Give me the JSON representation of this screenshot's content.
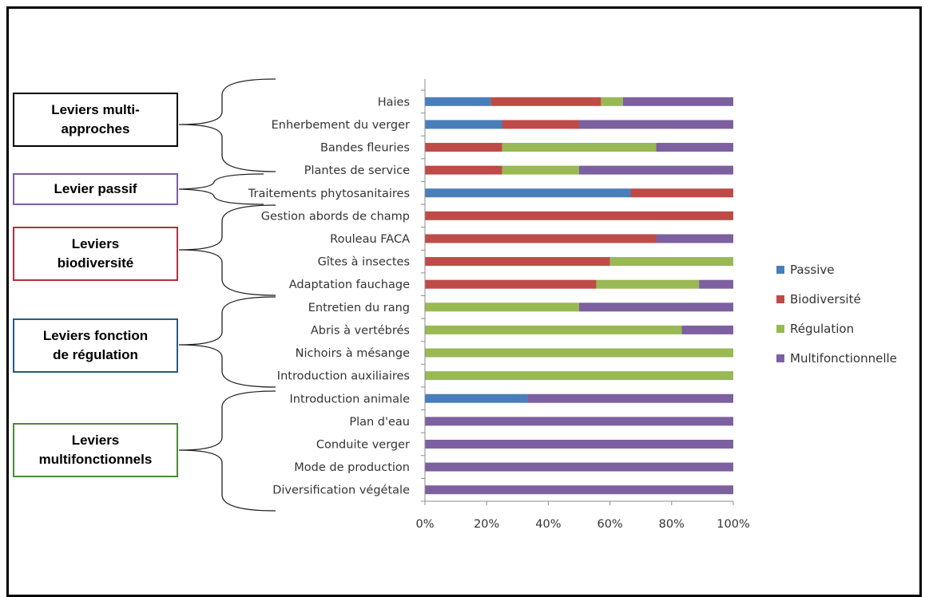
{
  "groups": [
    {
      "label": "Leviers multi-\napproches",
      "color": "#000000"
    },
    {
      "label": "Levier passif",
      "color": "#7b5fa0"
    },
    {
      "label": "Leviers\nbiodiversité",
      "color": "#b3303c"
    },
    {
      "label": "Leviers fonction\nde régulation",
      "color": "#2a5a7d"
    },
    {
      "label": "Leviers\nmultifonctionnels",
      "color": "#4d8a3a"
    }
  ],
  "chart_data": {
    "type": "bar",
    "orientation": "horizontal",
    "stacked": true,
    "percent": true,
    "categories": [
      "Haies",
      "Enherbement du verger",
      "Bandes fleuries",
      "Plantes de service",
      "Traitements phytosanitaires",
      "Gestion abords de champ",
      "Rouleau FACA",
      "Gîtes à insectes",
      "Adaptation fauchage",
      "Entretien du rang",
      "Abris à vertébrés",
      "Nichoirs à mésange",
      "Introduction auxiliaires",
      "Introduction animale",
      "Plan d'eau",
      "Conduite verger",
      "Mode de production",
      "Diversification végétale"
    ],
    "series": [
      {
        "name": "Passive",
        "color": "#4a7ebb",
        "values": [
          21.4,
          25,
          0,
          0,
          66.7,
          0,
          0,
          0,
          0,
          0,
          0,
          0,
          0,
          33.3,
          0,
          0,
          0,
          0
        ]
      },
      {
        "name": "Biodiversité",
        "color": "#be4b48",
        "values": [
          35.7,
          25,
          25,
          25,
          33.3,
          100,
          75,
          60,
          55.6,
          0,
          0,
          0,
          0,
          0,
          0,
          0,
          0,
          0
        ]
      },
      {
        "name": "Régulation",
        "color": "#98b954",
        "values": [
          7.1,
          0,
          50,
          25,
          0,
          0,
          0,
          40,
          33.3,
          50,
          83.3,
          100,
          100,
          0,
          0,
          0,
          0,
          0
        ]
      },
      {
        "name": "Multifonctionnelle",
        "color": "#7d60a0",
        "values": [
          35.8,
          50,
          25,
          50,
          0,
          0,
          25,
          0,
          11.1,
          50,
          16.7,
          0,
          0,
          66.7,
          100,
          100,
          100,
          100
        ]
      }
    ],
    "xlim": [
      0,
      100
    ],
    "x_ticks": [
      "0%",
      "20%",
      "40%",
      "60%",
      "80%",
      "100%"
    ],
    "grid": false,
    "legend_position": "right"
  }
}
